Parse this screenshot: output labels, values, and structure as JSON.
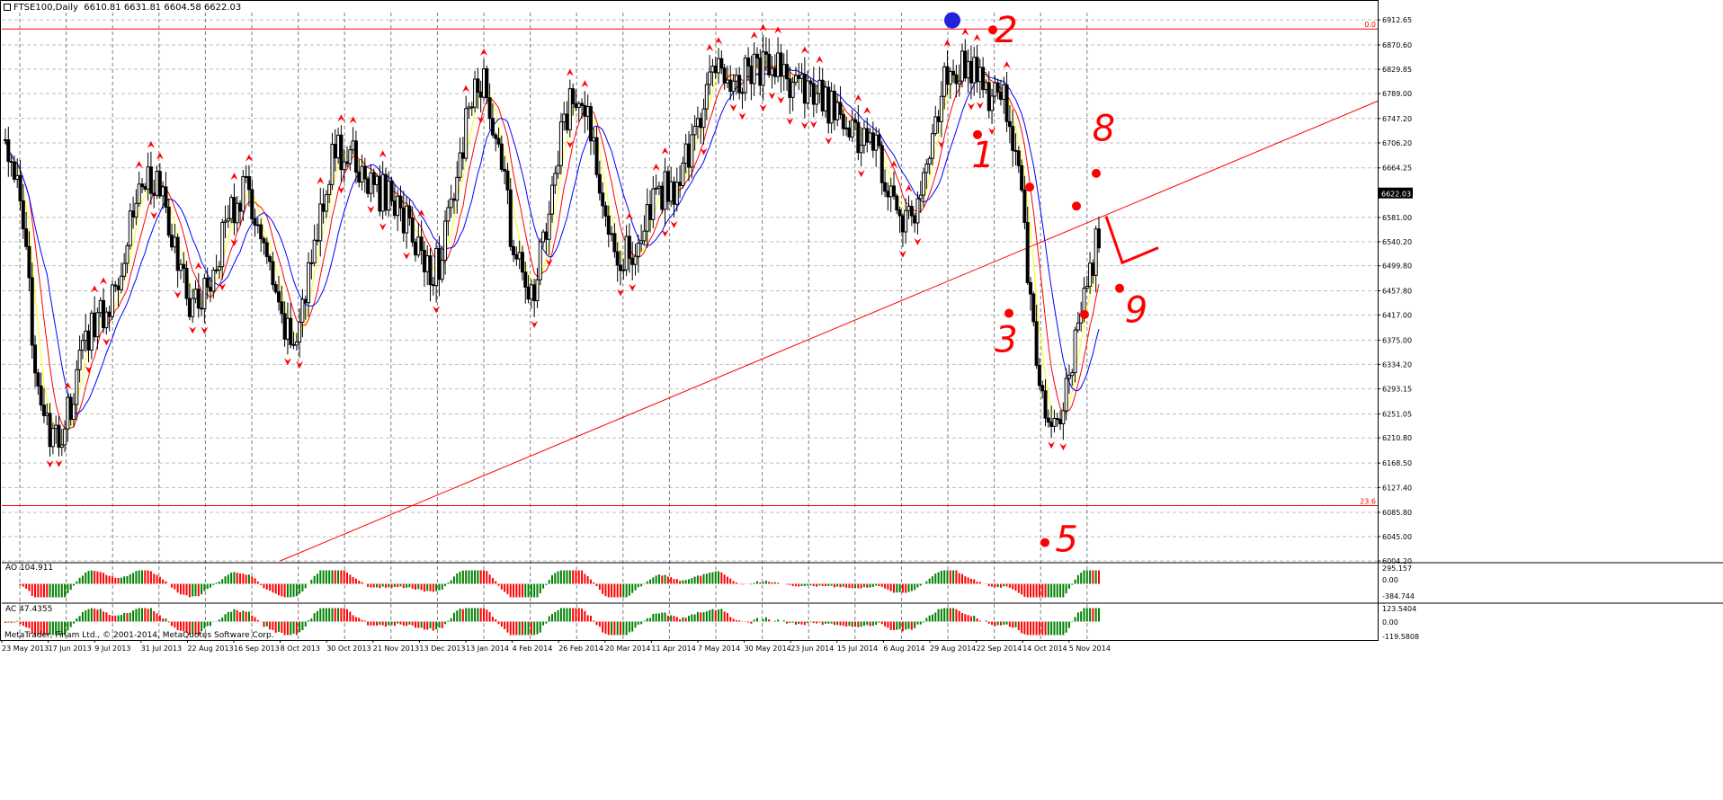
{
  "window": {
    "symbol_label": "FTSE100,Daily",
    "ohlc_label": "6610.81 6631.81 6604.58 6622.03"
  },
  "colors": {
    "background": "#ffffff",
    "grid": "#7f7f7f",
    "candle": "#000000",
    "fractal": "#ff0000",
    "ma_fast": "#ffff00",
    "ma_mid": "#ff0000",
    "ma_slow": "#0000ff",
    "trendline": "#ff0000",
    "level": "#ff0000",
    "histogram_up": "#008000",
    "histogram_down": "#ff0000",
    "annotation": "#ff0000",
    "annotation_blue": "#2222dd",
    "price_badge_bg": "#000000",
    "price_badge_text": "#ffffff"
  },
  "price_axis": {
    "ticks": [
      "6912.65",
      "6870.60",
      "6829.85",
      "6789.00",
      "6747.20",
      "6706.20",
      "6664.25",
      "6622.03",
      "6581.00",
      "6540.20",
      "6499.80",
      "6457.80",
      "6417.00",
      "6375.00",
      "6334.20",
      "6293.15",
      "6251.05",
      "6210.80",
      "6168.50",
      "6127.40",
      "6085.80",
      "6045.00",
      "6004.20"
    ],
    "current_price": "6622.03"
  },
  "date_axis": {
    "labels": [
      "23 May 2013",
      "17 Jun 2013",
      "9 Jul 2013",
      "31 Jul 2013",
      "22 Aug 2013",
      "16 Sep 2013",
      "8 Oct 2013",
      "30 Oct 2013",
      "21 Nov 2013",
      "13 Dec 2013",
      "13 Jan 2014",
      "4 Feb 2014",
      "26 Feb 2014",
      "20 Mar 2014",
      "11 Apr 2014",
      "7 May 2014",
      "30 May 2014",
      "23 Jun 2014",
      "15 Jul 2014",
      "6 Aug 2014",
      "29 Aug 2014",
      "22 Sep 2014",
      "14 Oct 2014",
      "5 Nov 2014"
    ]
  },
  "fib_levels": [
    {
      "label": "0.0",
      "price": 6897.5
    },
    {
      "label": "23.6",
      "price": 6097
    }
  ],
  "annotations": [
    {
      "text": "2",
      "date_index": 21.4,
      "price": 6875
    },
    {
      "text": "1",
      "date_index": 20.9,
      "price": 6665
    },
    {
      "text": "8",
      "date_index": 23.5,
      "price": 6710
    },
    {
      "text": "3",
      "date_index": 21.4,
      "price": 6355
    },
    {
      "text": "9",
      "date_index": 24.2,
      "price": 6405
    },
    {
      "text": "5",
      "date_index": 22.7,
      "price": 6020
    }
  ],
  "indicators": {
    "ao": {
      "label": "AO 104.911",
      "ticks": [
        "295.157",
        "0.00",
        "-384.744"
      ]
    },
    "ac": {
      "label": "AC 47.4355",
      "ticks": [
        "123.5404",
        "0.00",
        "-119.5808"
      ]
    }
  },
  "copyright": "MetaTrader, Finam Ltd., © 2001-2014, MetaQuotes Software Corp.",
  "chart_data": {
    "type": "candlestick",
    "title": "FTSE100,Daily",
    "last_close": 6622.03,
    "ylim": [
      6004.2,
      6925
    ],
    "grid": true,
    "series": [
      {
        "name": "FTSE100",
        "x": [
          "23 May 2013",
          "17 Jun 2013",
          "9 Jul 2013",
          "31 Jul 2013",
          "22 Aug 2013",
          "16 Sep 2013",
          "8 Oct 2013",
          "30 Oct 2013",
          "21 Nov 2013",
          "13 Dec 2013",
          "13 Jan 2014",
          "4 Feb 2014",
          "26 Feb 2014",
          "20 Mar 2014",
          "11 Apr 2014",
          "7 May 2014",
          "30 May 2014",
          "23 Jun 2014",
          "15 Jul 2014",
          "6 Aug 2014",
          "29 Aug 2014",
          "22 Sep 2014",
          "14 Oct 2014",
          "5 Nov 2014"
        ],
        "values": [
          6700,
          6200,
          6420,
          6650,
          6440,
          6620,
          6380,
          6690,
          6620,
          6500,
          6800,
          6460,
          6780,
          6520,
          6630,
          6820,
          6830,
          6780,
          6720,
          6580,
          6840,
          6770,
          6220,
          6530
        ]
      }
    ],
    "trendline": {
      "from": [
        "8 Oct 2013",
        6004.2
      ],
      "to": [
        "5 Nov 2014",
        6575
      ]
    }
  }
}
